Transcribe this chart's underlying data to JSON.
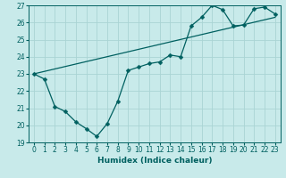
{
  "title": "",
  "xlabel": "Humidex (Indice chaleur)",
  "ylabel": "",
  "bg_color": "#c8eaea",
  "grid_color": "#aad4d4",
  "line_color": "#006060",
  "xlim": [
    -0.5,
    23.5
  ],
  "ylim": [
    19,
    27
  ],
  "xticks": [
    0,
    1,
    2,
    3,
    4,
    5,
    6,
    7,
    8,
    9,
    10,
    11,
    12,
    13,
    14,
    15,
    16,
    17,
    18,
    19,
    20,
    21,
    22,
    23
  ],
  "yticks": [
    19,
    20,
    21,
    22,
    23,
    24,
    25,
    26,
    27
  ],
  "line1_x": [
    0,
    1,
    2,
    3,
    4,
    5,
    6,
    7,
    8,
    9,
    10,
    11,
    12,
    13,
    14,
    15,
    16,
    17,
    18,
    19,
    20,
    21,
    22,
    23
  ],
  "line1_y": [
    23.0,
    22.7,
    21.1,
    20.8,
    20.2,
    19.8,
    19.35,
    20.1,
    21.4,
    23.2,
    23.4,
    23.6,
    23.7,
    24.1,
    24.0,
    25.8,
    26.3,
    27.0,
    26.75,
    25.8,
    25.85,
    26.8,
    26.9,
    26.5
  ],
  "line2_x": [
    0,
    23
  ],
  "line2_y": [
    23.0,
    26.3
  ],
  "xlabel_fontsize": 6.5,
  "tick_fontsize": 5.5,
  "marker_size": 2.5,
  "linewidth": 0.9
}
